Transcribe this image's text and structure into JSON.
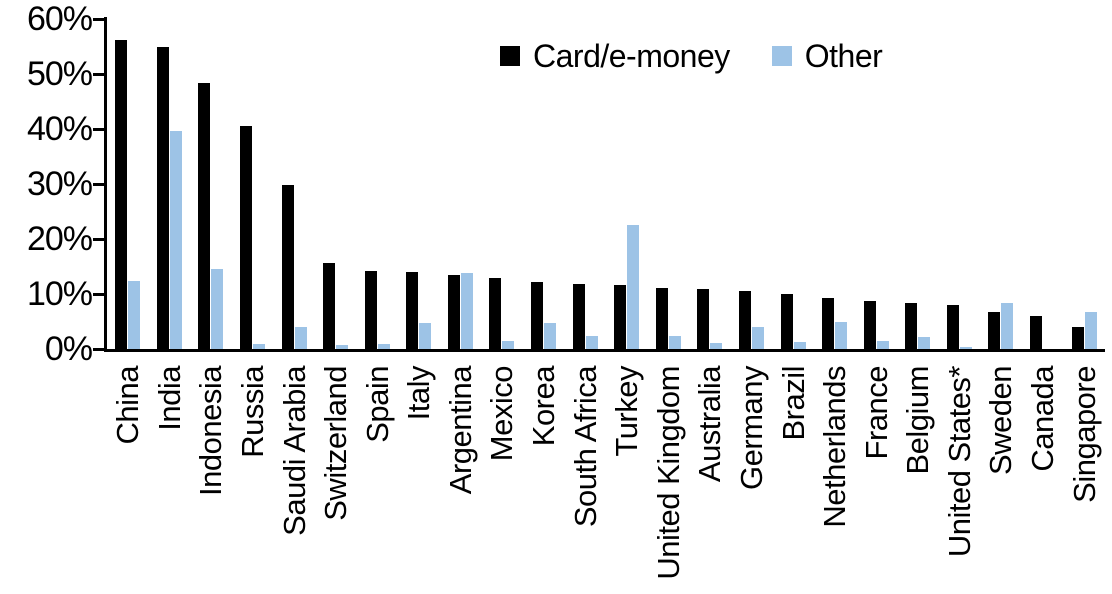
{
  "chart_data": {
    "type": "bar",
    "title": "",
    "xlabel": "",
    "ylabel": "",
    "categories": [
      "China",
      "India",
      "Indonesia",
      "Russia",
      "Saudi Arabia",
      "Switzerland",
      "Spain",
      "Italy",
      "Argentina",
      "Mexico",
      "Korea",
      "South Africa",
      "Turkey",
      "United Kingdom",
      "Australia",
      "Germany",
      "Brazil",
      "Netherlands",
      "France",
      "Belgium",
      "United States*",
      "Sweden",
      "Canada",
      "Singapore"
    ],
    "series": [
      {
        "name": "Card/e-money",
        "color": "#000000",
        "values": [
          56.2,
          55.0,
          48.3,
          40.5,
          29.8,
          15.6,
          14.2,
          14.1,
          13.5,
          13.0,
          12.2,
          11.8,
          11.6,
          11.1,
          10.9,
          10.6,
          10.1,
          9.3,
          8.8,
          8.3,
          8.0,
          6.7,
          6.1,
          4.0
        ]
      },
      {
        "name": "Other",
        "color": "#9DC3E6",
        "values": [
          12.3,
          39.7,
          14.6,
          1.0,
          4.0,
          0.8,
          1.0,
          4.7,
          13.9,
          1.4,
          4.7,
          2.4,
          22.5,
          2.3,
          1.1,
          4.0,
          1.2,
          4.9,
          1.5,
          2.1,
          0.3,
          8.3,
          0.0,
          6.8
        ]
      }
    ],
    "ylim": [
      0,
      60
    ],
    "yticks": [
      "0%",
      "10%",
      "20%",
      "30%",
      "40%",
      "50%",
      "60%"
    ],
    "ytick_values": [
      0,
      10,
      20,
      30,
      40,
      50,
      60
    ],
    "grid": false,
    "legend_position": "top-center"
  }
}
